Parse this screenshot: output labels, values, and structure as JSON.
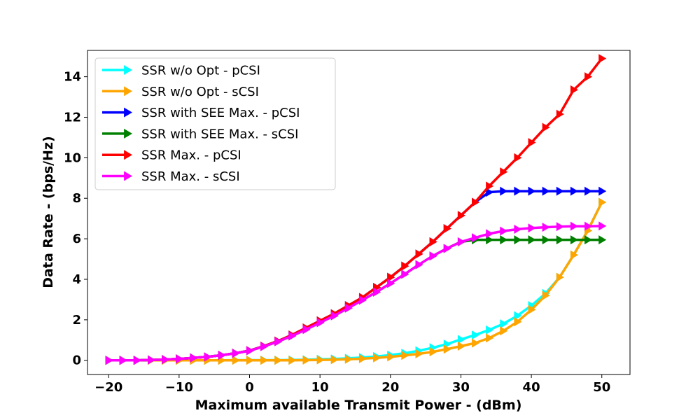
{
  "chart_data": {
    "type": "line",
    "title": "",
    "xlabel": "Maximum available Transmit Power - (dBm)",
    "ylabel": "Data Rate - (bps/Hz)",
    "xlim": [
      -23,
      54
    ],
    "ylim": [
      -0.7,
      15.3
    ],
    "xticks": [
      -20,
      -10,
      0,
      10,
      20,
      30,
      40,
      50
    ],
    "xtick_labels": [
      "−20",
      "−10",
      "0",
      "10",
      "20",
      "30",
      "40",
      "50"
    ],
    "yticks": [
      0,
      2,
      4,
      6,
      8,
      10,
      12,
      14
    ],
    "ytick_labels": [
      "0",
      "2",
      "4",
      "6",
      "8",
      "10",
      "12",
      "14"
    ],
    "grid": false,
    "legend_position": "top-left",
    "x": [
      -20,
      -18,
      -16,
      -14,
      -12,
      -10,
      -8,
      -6,
      -4,
      -2,
      0,
      2,
      4,
      6,
      8,
      10,
      12,
      14,
      16,
      18,
      20,
      22,
      24,
      26,
      28,
      30,
      32,
      34,
      36,
      38,
      40,
      42,
      44,
      46,
      48,
      50
    ],
    "series": [
      {
        "name": "SSR w/o Opt - pCSI",
        "color": "#00ffff",
        "values": [
          0,
          0,
          0,
          0,
          0,
          0,
          0,
          0,
          0,
          0.01,
          0.01,
          0.01,
          0.01,
          0.02,
          0.03,
          0.05,
          0.07,
          0.1,
          0.14,
          0.19,
          0.26,
          0.35,
          0.47,
          0.62,
          0.8,
          1.03,
          1.25,
          1.5,
          1.8,
          2.2,
          2.7,
          3.3,
          4.1,
          5.2,
          6.4,
          7.8
        ]
      },
      {
        "name": "SSR w/o Opt - sCSI",
        "color": "#ffa500",
        "values": [
          0,
          0,
          0,
          0,
          0,
          0,
          0,
          0,
          0,
          0,
          0,
          0,
          0,
          0,
          0.01,
          0.02,
          0.03,
          0.05,
          0.08,
          0.12,
          0.17,
          0.24,
          0.32,
          0.42,
          0.55,
          0.7,
          0.85,
          1.1,
          1.45,
          1.9,
          2.5,
          3.2,
          4.1,
          5.2,
          6.4,
          7.8
        ]
      },
      {
        "name": "SSR with SEE Max. - pCSI",
        "color": "#0000ff",
        "values": [
          0,
          0,
          0,
          0.02,
          0.04,
          0.07,
          0.12,
          0.17,
          0.25,
          0.35,
          0.48,
          0.7,
          0.95,
          1.25,
          1.6,
          1.95,
          2.3,
          2.7,
          3.1,
          3.6,
          4.1,
          4.65,
          5.25,
          5.85,
          6.5,
          7.15,
          7.8,
          8.3,
          8.35,
          8.35,
          8.35,
          8.35,
          8.35,
          8.35,
          8.35,
          8.35
        ]
      },
      {
        "name": "SSR with SEE Max. - sCSI",
        "color": "#008000",
        "values": [
          0,
          0,
          0,
          0.02,
          0.04,
          0.07,
          0.12,
          0.17,
          0.25,
          0.35,
          0.47,
          0.68,
          0.92,
          1.2,
          1.52,
          1.86,
          2.2,
          2.58,
          2.97,
          3.37,
          3.8,
          4.25,
          4.72,
          5.15,
          5.52,
          5.85,
          5.95,
          5.95,
          5.95,
          5.95,
          5.95,
          5.95,
          5.95,
          5.95,
          5.95,
          5.95
        ]
      },
      {
        "name": "SSR Max. - pCSI",
        "color": "#ff0000",
        "values": [
          0,
          0,
          0,
          0.02,
          0.04,
          0.07,
          0.12,
          0.17,
          0.25,
          0.35,
          0.48,
          0.7,
          0.95,
          1.25,
          1.6,
          1.95,
          2.3,
          2.7,
          3.1,
          3.6,
          4.1,
          4.65,
          5.25,
          5.85,
          6.5,
          7.15,
          7.8,
          8.6,
          9.3,
          10.0,
          10.75,
          11.5,
          12.15,
          13.35,
          14.0,
          14.9
        ]
      },
      {
        "name": "SSR Max. - sCSI",
        "color": "#ff00ff",
        "values": [
          0,
          0,
          0,
          0.02,
          0.04,
          0.07,
          0.12,
          0.17,
          0.25,
          0.35,
          0.47,
          0.68,
          0.92,
          1.2,
          1.52,
          1.86,
          2.2,
          2.58,
          2.97,
          3.37,
          3.8,
          4.25,
          4.72,
          5.15,
          5.52,
          5.85,
          6.05,
          6.25,
          6.38,
          6.47,
          6.53,
          6.57,
          6.6,
          6.62,
          6.62,
          6.63
        ]
      }
    ]
  }
}
